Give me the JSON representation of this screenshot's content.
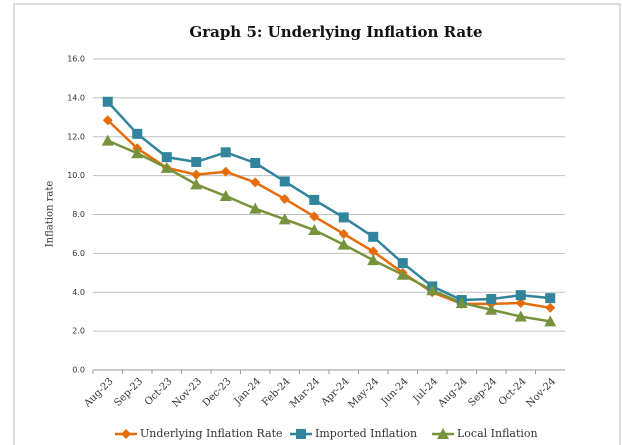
{
  "chart_data": {
    "type": "line",
    "title": "Graph 5: Underlying Inflation Rate",
    "y_label": "Inflation rate",
    "categories": [
      "Aug-23",
      "Sep-23",
      "Oct-23",
      "Nov-23",
      "Dec-23",
      "Jan-24",
      "Feb-24",
      "Mar-24",
      "Apr-24",
      "May-24",
      "Jun-24",
      "Jul-24",
      "Aug-24",
      "Sep-24",
      "Oct-24",
      "Nov-24"
    ],
    "series": [
      {
        "name": "Underlying Inflation Rate",
        "color": "#e46c0a",
        "marker": "diamond",
        "values": [
          12.85,
          11.4,
          10.4,
          10.05,
          10.2,
          9.65,
          8.8,
          7.9,
          7.0,
          6.1,
          5.0,
          4.0,
          3.4,
          3.4,
          3.45,
          3.2
        ]
      },
      {
        "name": "Imported Inflation",
        "color": "#31849b",
        "marker": "square",
        "values": [
          13.8,
          12.15,
          10.95,
          10.7,
          11.2,
          10.65,
          9.7,
          8.75,
          7.85,
          6.85,
          5.5,
          4.3,
          3.6,
          3.65,
          3.85,
          3.7
        ]
      },
      {
        "name": "Local Inflation",
        "color": "#76923c",
        "marker": "triangle",
        "values": [
          11.8,
          11.15,
          10.4,
          9.55,
          8.95,
          8.3,
          7.75,
          7.2,
          6.45,
          5.65,
          4.9,
          4.1,
          3.45,
          3.1,
          2.75,
          2.5
        ]
      }
    ],
    "ylim": [
      0,
      16
    ],
    "yticks": [
      {
        "value": 0,
        "label": "0.0"
      },
      {
        "value": 2,
        "label": "2.0"
      },
      {
        "value": 4,
        "label": "4.0"
      },
      {
        "value": 6,
        "label": "6.0"
      },
      {
        "value": 8,
        "label": "8.0"
      },
      {
        "value": 10,
        "label": "10.0"
      },
      {
        "value": 12,
        "label": "12.0"
      },
      {
        "value": 14,
        "label": "14.0"
      },
      {
        "value": 16,
        "label": "16.0"
      }
    ],
    "grid": true,
    "legend": "bottom"
  }
}
